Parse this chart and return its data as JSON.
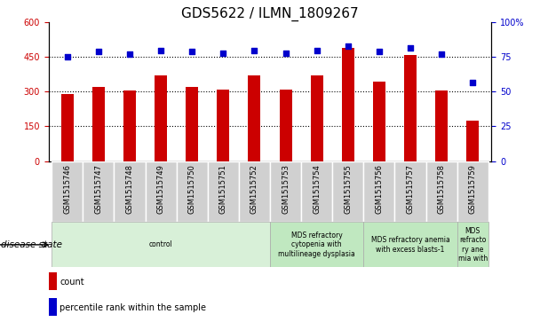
{
  "title": "GDS5622 / ILMN_1809267",
  "samples": [
    "GSM1515746",
    "GSM1515747",
    "GSM1515748",
    "GSM1515749",
    "GSM1515750",
    "GSM1515751",
    "GSM1515752",
    "GSM1515753",
    "GSM1515754",
    "GSM1515755",
    "GSM1515756",
    "GSM1515757",
    "GSM1515758",
    "GSM1515759"
  ],
  "counts": [
    290,
    320,
    305,
    370,
    320,
    310,
    370,
    310,
    370,
    490,
    345,
    460,
    305,
    175
  ],
  "percentiles": [
    75,
    79,
    77,
    80,
    79,
    78,
    80,
    78,
    80,
    83,
    79,
    82,
    77,
    57
  ],
  "bar_color": "#cc0000",
  "dot_color": "#0000cc",
  "ylim_left": [
    0,
    600
  ],
  "ylim_right": [
    0,
    100
  ],
  "yticks_left": [
    0,
    150,
    300,
    450,
    600
  ],
  "yticks_right": [
    0,
    25,
    50,
    75,
    100
  ],
  "hlines": [
    150,
    300,
    450
  ],
  "disease_groups": [
    {
      "label": "control",
      "start": 0,
      "end": 7,
      "color": "#d8f0d8"
    },
    {
      "label": "MDS refractory\ncytopenia with\nmultilineage dysplasia",
      "start": 7,
      "end": 10,
      "color": "#c0e8c0"
    },
    {
      "label": "MDS refractory anemia\nwith excess blasts-1",
      "start": 10,
      "end": 13,
      "color": "#c0e8c0"
    },
    {
      "label": "MDS\nrefracto\nry ane\nmia with",
      "start": 13,
      "end": 14,
      "color": "#c0e8c0"
    }
  ],
  "disease_state_label": "disease state",
  "legend_count_label": "count",
  "legend_percentile_label": "percentile rank within the sample",
  "plot_bg_color": "#ffffff",
  "xtick_bg_color": "#d0d0d0",
  "xtick_border_color": "#ffffff",
  "title_fontsize": 11,
  "tick_fontsize": 7,
  "bar_width": 0.4
}
